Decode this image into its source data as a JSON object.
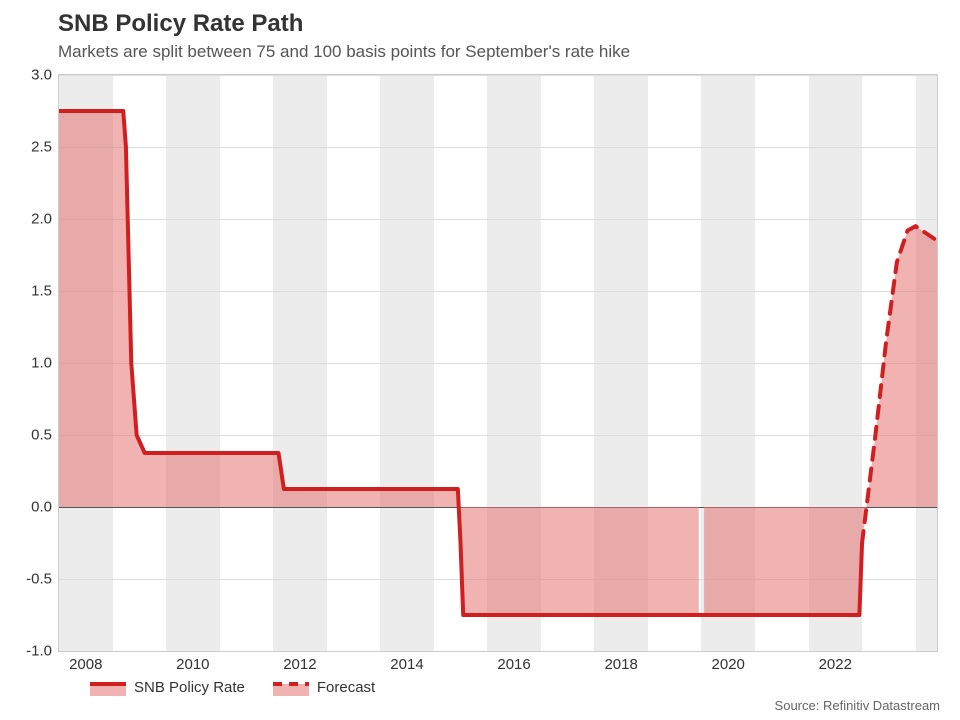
{
  "chart": {
    "type": "area-step",
    "title": "SNB Policy Rate Path",
    "subtitle": "Markets are split between 75 and 100 basis points for September's rate hike",
    "source": "Source: Refinitiv Datastream",
    "background_color": "#ffffff",
    "plot_border_color": "#cccccc",
    "band_color": "#ececec",
    "grid_color": "#dddddd",
    "zero_line_color": "#555555",
    "text_color": "#333333",
    "title_fontsize": 24,
    "subtitle_fontsize": 17,
    "axis_fontsize": 15,
    "legend_fontsize": 15,
    "source_fontsize": 13,
    "x_domain": [
      2007.5,
      2023.9
    ],
    "y_domain": [
      -1.0,
      3.0
    ],
    "y_ticks": [
      -1.0,
      -0.5,
      0.0,
      0.5,
      1.0,
      1.5,
      2.0,
      2.5,
      3.0
    ],
    "y_tick_labels": [
      "-1.0",
      "-0.5",
      "0.0",
      "0.5",
      "1.0",
      "1.5",
      "2.0",
      "2.5",
      "3.0"
    ],
    "x_ticks": [
      2008,
      2010,
      2012,
      2014,
      2016,
      2018,
      2020,
      2022
    ],
    "x_tick_labels": [
      "2008",
      "2010",
      "2012",
      "2014",
      "2016",
      "2018",
      "2020",
      "2022"
    ],
    "bands": [
      [
        2007.5,
        2008.5
      ],
      [
        2009.5,
        2010.5
      ],
      [
        2011.5,
        2012.5
      ],
      [
        2013.5,
        2014.5
      ],
      [
        2015.5,
        2016.5
      ],
      [
        2017.5,
        2018.5
      ],
      [
        2019.5,
        2020.5
      ],
      [
        2021.5,
        2022.5
      ],
      [
        2023.5,
        2023.9
      ]
    ],
    "gap_band": [
      2019.45,
      2019.55
    ],
    "series_actual": {
      "label": "SNB Policy Rate",
      "line_color": "#d11f1f",
      "fill_color": "rgba(229,115,115,0.55)",
      "line_width": 4,
      "points": [
        [
          2007.5,
          2.75
        ],
        [
          2008.7,
          2.75
        ],
        [
          2008.75,
          2.5
        ],
        [
          2008.85,
          1.0
        ],
        [
          2008.95,
          0.5
        ],
        [
          2009.1,
          0.375
        ],
        [
          2011.6,
          0.375
        ],
        [
          2011.7,
          0.125
        ],
        [
          2014.95,
          0.125
        ],
        [
          2015.0,
          -0.25
        ],
        [
          2015.05,
          -0.75
        ],
        [
          2022.45,
          -0.75
        ],
        [
          2022.5,
          -0.25
        ]
      ]
    },
    "series_forecast": {
      "label": "Forecast",
      "line_color": "#d11f1f",
      "fill_color": "rgba(229,115,115,0.55)",
      "line_width": 4,
      "dash": "12,9",
      "points": [
        [
          2022.5,
          -0.25
        ],
        [
          2022.75,
          0.5
        ],
        [
          2022.95,
          1.15
        ],
        [
          2023.15,
          1.7
        ],
        [
          2023.35,
          1.92
        ],
        [
          2023.5,
          1.95
        ],
        [
          2023.7,
          1.9
        ],
        [
          2023.9,
          1.85
        ]
      ]
    },
    "legend": [
      {
        "key": "actual",
        "label": "SNB Policy Rate"
      },
      {
        "key": "forecast",
        "label": "Forecast"
      }
    ]
  }
}
